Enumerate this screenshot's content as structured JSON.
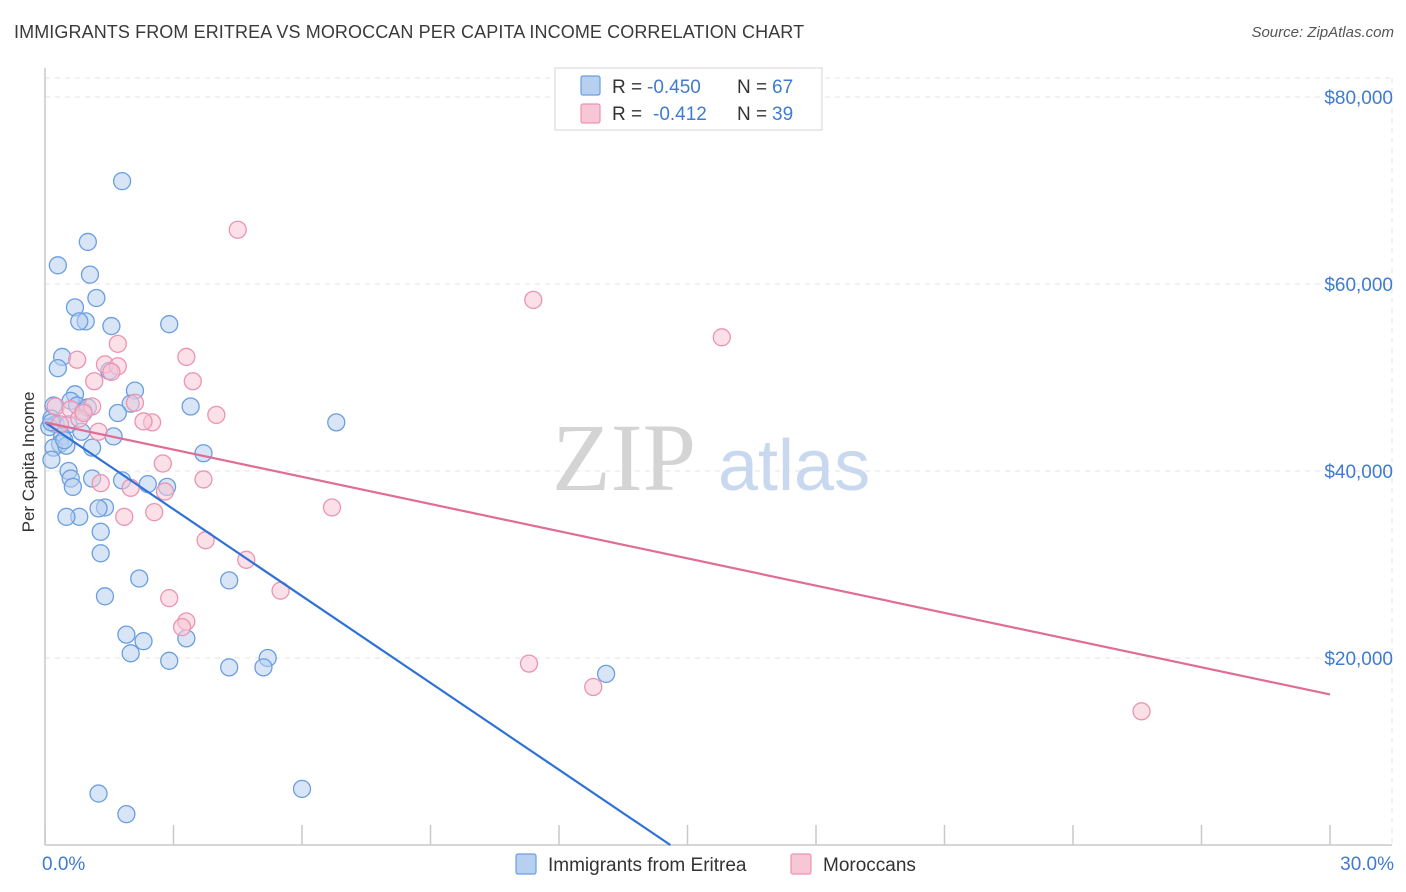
{
  "header": {
    "title": "IMMIGRANTS FROM ERITREA VS MOROCCAN PER CAPITA INCOME CORRELATION CHART",
    "source": "Source: ZipAtlas.com"
  },
  "watermark": {
    "zip": "ZIP",
    "atlas": "atlas"
  },
  "colors": {
    "blue_fill": "#b7d0f0",
    "blue_stroke": "#6b9ee0",
    "blue_line": "#2f72d6",
    "pink_fill": "#f7c7d6",
    "pink_stroke": "#ec93b2",
    "pink_line": "#e06d96",
    "grid": "#e3e3e3",
    "axis": "#c9c9c9",
    "tick_text": "#3f7bd1"
  },
  "legend": {
    "rows": [
      {
        "r_label": "R =",
        "r_value": "-0.450",
        "n_label": "N =",
        "n_value": "67"
      },
      {
        "r_label": "R =",
        "r_value": "-0.412",
        "n_label": "N =",
        "n_value": "39"
      }
    ]
  },
  "chart_data": {
    "type": "scatter",
    "title": "IMMIGRANTS FROM ERITREA VS MOROCCAN PER CAPITA INCOME CORRELATION CHART",
    "xlabel": "",
    "ylabel": "Per Capita Income",
    "xlim": [
      0,
      30
    ],
    "ylim": [
      0,
      80000
    ],
    "x_tick_labels": [
      {
        "value": 0,
        "label": "0.0%"
      },
      {
        "value": 30,
        "label": "30.0%"
      }
    ],
    "y_ticks": [
      {
        "value": 20000,
        "label": "$20,000"
      },
      {
        "value": 40000,
        "label": "$40,000"
      },
      {
        "value": 60000,
        "label": "$60,000"
      },
      {
        "value": 80000,
        "label": "$80,000"
      }
    ],
    "x_minor_ticks": [
      0,
      3,
      6,
      9,
      12,
      15,
      18,
      21,
      24,
      27,
      30
    ],
    "grid": true,
    "legend_position": "top-center",
    "series": [
      {
        "name": "Immigrants from Eritrea",
        "color": "blue",
        "r": -0.45,
        "n": 67,
        "trend": {
          "x": [
            0,
            14.6
          ],
          "y": [
            45200,
            0
          ]
        },
        "points": [
          [
            1.8,
            71000
          ],
          [
            1.0,
            64500
          ],
          [
            0.3,
            62000
          ],
          [
            1.05,
            61000
          ],
          [
            1.2,
            58500
          ],
          [
            0.7,
            57500
          ],
          [
            0.95,
            56000
          ],
          [
            0.8,
            56000
          ],
          [
            1.55,
            55500
          ],
          [
            2.9,
            55700
          ],
          [
            0.4,
            52200
          ],
          [
            0.3,
            51000
          ],
          [
            1.5,
            50700
          ],
          [
            2.1,
            48600
          ],
          [
            0.7,
            48200
          ],
          [
            0.6,
            47500
          ],
          [
            0.2,
            47000
          ],
          [
            0.75,
            47000
          ],
          [
            2.0,
            47200
          ],
          [
            3.4,
            46900
          ],
          [
            1.7,
            46200
          ],
          [
            0.9,
            46400
          ],
          [
            0.15,
            45600
          ],
          [
            0.25,
            45000
          ],
          [
            0.55,
            45000
          ],
          [
            0.85,
            44200
          ],
          [
            0.1,
            44700
          ],
          [
            0.4,
            43700
          ],
          [
            0.35,
            42900
          ],
          [
            0.2,
            42500
          ],
          [
            0.5,
            42700
          ],
          [
            1.1,
            42500
          ],
          [
            3.7,
            41900
          ],
          [
            0.15,
            41200
          ],
          [
            0.55,
            40000
          ],
          [
            0.6,
            39200
          ],
          [
            1.1,
            39200
          ],
          [
            1.8,
            39000
          ],
          [
            2.4,
            38600
          ],
          [
            2.85,
            38300
          ],
          [
            0.65,
            38300
          ],
          [
            1.4,
            36100
          ],
          [
            1.25,
            36000
          ],
          [
            0.8,
            35100
          ],
          [
            0.5,
            35100
          ],
          [
            6.8,
            45200
          ],
          [
            1.3,
            33500
          ],
          [
            1.3,
            31200
          ],
          [
            2.2,
            28500
          ],
          [
            4.3,
            28300
          ],
          [
            1.4,
            26600
          ],
          [
            1.9,
            22500
          ],
          [
            2.3,
            21800
          ],
          [
            3.3,
            22100
          ],
          [
            2.0,
            20500
          ],
          [
            5.2,
            20000
          ],
          [
            5.1,
            19000
          ],
          [
            2.9,
            19700
          ],
          [
            4.3,
            19000
          ],
          [
            13.1,
            18300
          ],
          [
            1.25,
            5500
          ],
          [
            1.9,
            3300
          ],
          [
            6.0,
            6000
          ],
          [
            0.15,
            45200
          ],
          [
            1.0,
            46800
          ],
          [
            0.45,
            43300
          ],
          [
            1.6,
            43700
          ]
        ]
      },
      {
        "name": "Moroccans",
        "color": "pink",
        "r": -0.412,
        "n": 39,
        "trend": {
          "x": [
            0,
            30
          ],
          "y": [
            45200,
            16100
          ]
        },
        "points": [
          [
            4.5,
            65800
          ],
          [
            11.4,
            58300
          ],
          [
            15.8,
            54300
          ],
          [
            1.7,
            53600
          ],
          [
            1.4,
            51400
          ],
          [
            3.3,
            52200
          ],
          [
            1.7,
            51200
          ],
          [
            0.75,
            51900
          ],
          [
            3.45,
            49600
          ],
          [
            1.55,
            50600
          ],
          [
            1.15,
            49600
          ],
          [
            2.1,
            47300
          ],
          [
            0.25,
            46900
          ],
          [
            0.6,
            46600
          ],
          [
            1.1,
            46900
          ],
          [
            4.0,
            46000
          ],
          [
            0.8,
            45600
          ],
          [
            2.5,
            45200
          ],
          [
            2.3,
            45300
          ],
          [
            0.35,
            45000
          ],
          [
            1.25,
            44200
          ],
          [
            0.9,
            46200
          ],
          [
            2.75,
            40800
          ],
          [
            3.7,
            39100
          ],
          [
            1.3,
            38700
          ],
          [
            2.0,
            38200
          ],
          [
            2.8,
            37800
          ],
          [
            6.7,
            36100
          ],
          [
            2.55,
            35600
          ],
          [
            1.85,
            35100
          ],
          [
            3.75,
            32600
          ],
          [
            4.7,
            30500
          ],
          [
            5.5,
            27200
          ],
          [
            2.9,
            26400
          ],
          [
            3.3,
            23900
          ],
          [
            3.2,
            23300
          ],
          [
            11.3,
            19400
          ],
          [
            12.8,
            16900
          ],
          [
            25.6,
            14300
          ]
        ]
      }
    ]
  }
}
